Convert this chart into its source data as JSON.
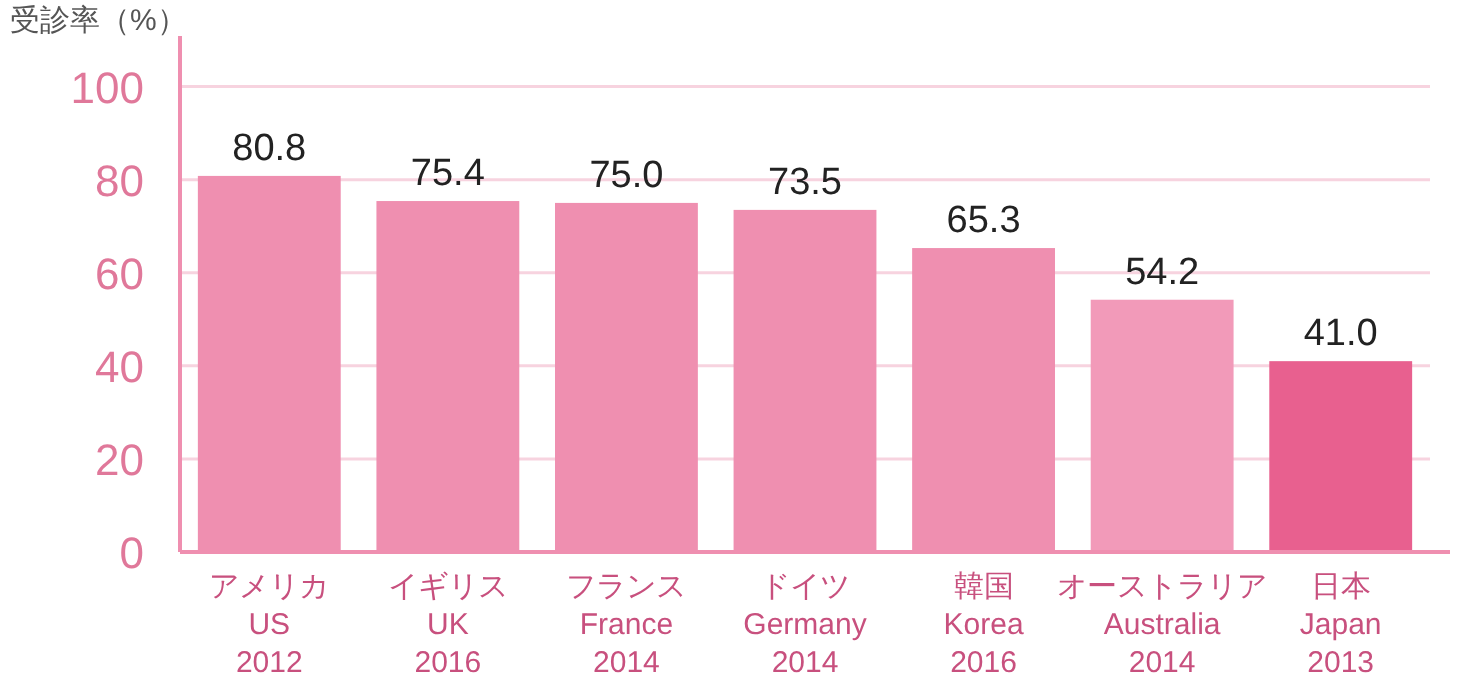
{
  "chart_data": {
    "type": "bar",
    "ylabel": "受診率（%）",
    "categories": [
      "アメリカ\nUS\n2012",
      "イギリス\nUK\n2016",
      "フランス\nFrance\n2014",
      "ドイツ\nGermany\n2014",
      "韓国\nKorea\n2016",
      "オーストラリア\nAustralia\n2014",
      "日本\nJapan\n2013"
    ],
    "values": [
      80.8,
      75.4,
      75.0,
      73.5,
      65.3,
      54.2,
      41.0
    ],
    "colors": [
      "#ef8fb0",
      "#ef8fb0",
      "#ef8fb0",
      "#ef8fb0",
      "#ef8fb0",
      "#f29ab9",
      "#e8608f"
    ],
    "value_labels": [
      "80.8",
      "75.4",
      "75.0",
      "73.5",
      "65.3",
      "54.2",
      "41.0"
    ],
    "ylim": [
      0,
      110
    ],
    "yticks": [
      0,
      20,
      40,
      60,
      80,
      100
    ],
    "grid": "y"
  }
}
